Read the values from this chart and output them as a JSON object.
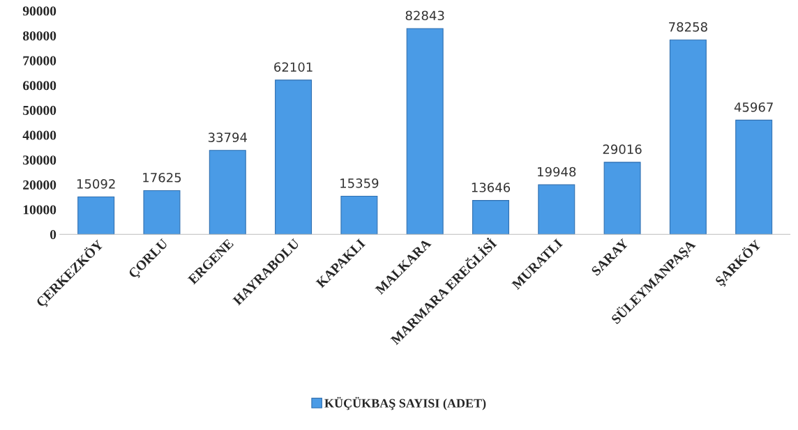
{
  "chart_data": {
    "type": "bar",
    "categories": [
      "ÇERKEZKÖY",
      "ÇORLU",
      "ERGENE",
      "HAYRABOLU",
      "KAPAKLI",
      "MALKARA",
      "MARMARA EREĞLİSİ",
      "MURATLI",
      "SARAY",
      "SÜLEYMANPAŞA",
      "ŞARKÖY"
    ],
    "series": [
      {
        "name": "KÜÇÜKBAŞ SAYISI (ADET)",
        "color": "#4a9be6",
        "values": [
          15092,
          17625,
          33794,
          62101,
          15359,
          82843,
          13646,
          19948,
          29016,
          78258,
          45967
        ]
      }
    ],
    "ylim": [
      0,
      90000
    ],
    "yticks": [
      0,
      10000,
      20000,
      30000,
      40000,
      50000,
      60000,
      70000,
      80000,
      90000
    ],
    "data_labels": true,
    "grid": false,
    "legend": "bottom"
  }
}
